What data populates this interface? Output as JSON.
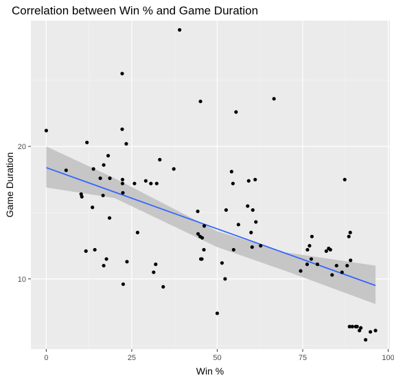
{
  "chart_data": {
    "type": "scatter",
    "title": "Correlation between Win % and Game Duration",
    "xlabel": "Win %",
    "ylabel": "Game Duration",
    "xlim": [
      -4.5,
      100.5
    ],
    "ylim": [
      4.7,
      29.5
    ],
    "x_ticks": [
      0,
      25,
      50,
      75,
      100
    ],
    "y_ticks": [
      10,
      20
    ],
    "grid": true,
    "background": "#ebebeb",
    "point_color": "#000000",
    "trend_color": "#3366ff",
    "band_color": "#c2c2c2",
    "points": [
      [
        0,
        21.2
      ],
      [
        5.8,
        18.2
      ],
      [
        10.2,
        16.4
      ],
      [
        10.4,
        16.2
      ],
      [
        11.6,
        12.1
      ],
      [
        11.9,
        20.3
      ],
      [
        13.5,
        15.4
      ],
      [
        13.8,
        18.3
      ],
      [
        14.2,
        12.2
      ],
      [
        15.8,
        17.6
      ],
      [
        16.6,
        16.3
      ],
      [
        16.8,
        18.6
      ],
      [
        16.8,
        11.0
      ],
      [
        17.6,
        11.5
      ],
      [
        18.1,
        19.3
      ],
      [
        18.5,
        14.6
      ],
      [
        18.6,
        17.6
      ],
      [
        22.2,
        25.5
      ],
      [
        22.2,
        21.3
      ],
      [
        22.3,
        17.5
      ],
      [
        22.3,
        17.2
      ],
      [
        22.4,
        16.5
      ],
      [
        22.5,
        9.6
      ],
      [
        23.4,
        20.2
      ],
      [
        23.6,
        11.3
      ],
      [
        25.8,
        17.2
      ],
      [
        26.7,
        13.5
      ],
      [
        29.1,
        17.4
      ],
      [
        30.6,
        17.2
      ],
      [
        31.4,
        10.5
      ],
      [
        32.0,
        11.1
      ],
      [
        32.3,
        17.2
      ],
      [
        33.2,
        19.0
      ],
      [
        34.2,
        9.4
      ],
      [
        37.3,
        18.3
      ],
      [
        39.0,
        28.8
      ],
      [
        44.3,
        15.1
      ],
      [
        44.4,
        13.4
      ],
      [
        45.0,
        13.2
      ],
      [
        45.1,
        23.4
      ],
      [
        45.2,
        11.5
      ],
      [
        45.5,
        11.5
      ],
      [
        45.6,
        13.1
      ],
      [
        46.1,
        12.2
      ],
      [
        46.2,
        14.0
      ],
      [
        50.0,
        7.4
      ],
      [
        51.4,
        11.2
      ],
      [
        52.3,
        10.0
      ],
      [
        52.6,
        15.2
      ],
      [
        54.2,
        18.1
      ],
      [
        54.6,
        17.2
      ],
      [
        54.8,
        12.2
      ],
      [
        55.5,
        22.6
      ],
      [
        56.2,
        14.1
      ],
      [
        58.9,
        15.5
      ],
      [
        59.2,
        17.4
      ],
      [
        59.9,
        13.5
      ],
      [
        60.2,
        12.4
      ],
      [
        60.4,
        15.2
      ],
      [
        61.1,
        17.5
      ],
      [
        61.3,
        14.3
      ],
      [
        62.7,
        12.5
      ],
      [
        66.6,
        23.6
      ],
      [
        74.4,
        10.6
      ],
      [
        76.3,
        11.1
      ],
      [
        76.4,
        12.2
      ],
      [
        77.0,
        12.5
      ],
      [
        77.5,
        11.5
      ],
      [
        77.7,
        13.2
      ],
      [
        79.3,
        11.1
      ],
      [
        81.9,
        12.1
      ],
      [
        82.6,
        12.3
      ],
      [
        83.1,
        12.2
      ],
      [
        83.6,
        10.3
      ],
      [
        84.9,
        11.0
      ],
      [
        86.5,
        10.5
      ],
      [
        87.3,
        17.5
      ],
      [
        88.0,
        11.0
      ],
      [
        88.5,
        13.2
      ],
      [
        88.7,
        6.4
      ],
      [
        88.9,
        13.5
      ],
      [
        89.0,
        11.4
      ],
      [
        89.5,
        6.4
      ],
      [
        90.5,
        6.4
      ],
      [
        90.9,
        6.4
      ],
      [
        91.6,
        6.1
      ],
      [
        92.0,
        6.3
      ],
      [
        93.4,
        5.4
      ],
      [
        94.8,
        6.0
      ],
      [
        96.3,
        6.1
      ]
    ],
    "trend": {
      "x0": 0,
      "y0": 18.4,
      "x1": 96.3,
      "y1": 9.5
    },
    "band": {
      "upper": [
        [
          0,
          20.0
        ],
        [
          20,
          17.6
        ],
        [
          50,
          13.6
        ],
        [
          70,
          12.0
        ],
        [
          96.3,
          11.0
        ]
      ],
      "lower": [
        [
          96.3,
          8.1
        ],
        [
          70,
          10.6
        ],
        [
          50,
          12.4
        ],
        [
          20,
          16.1
        ],
        [
          0,
          16.9
        ]
      ]
    }
  }
}
